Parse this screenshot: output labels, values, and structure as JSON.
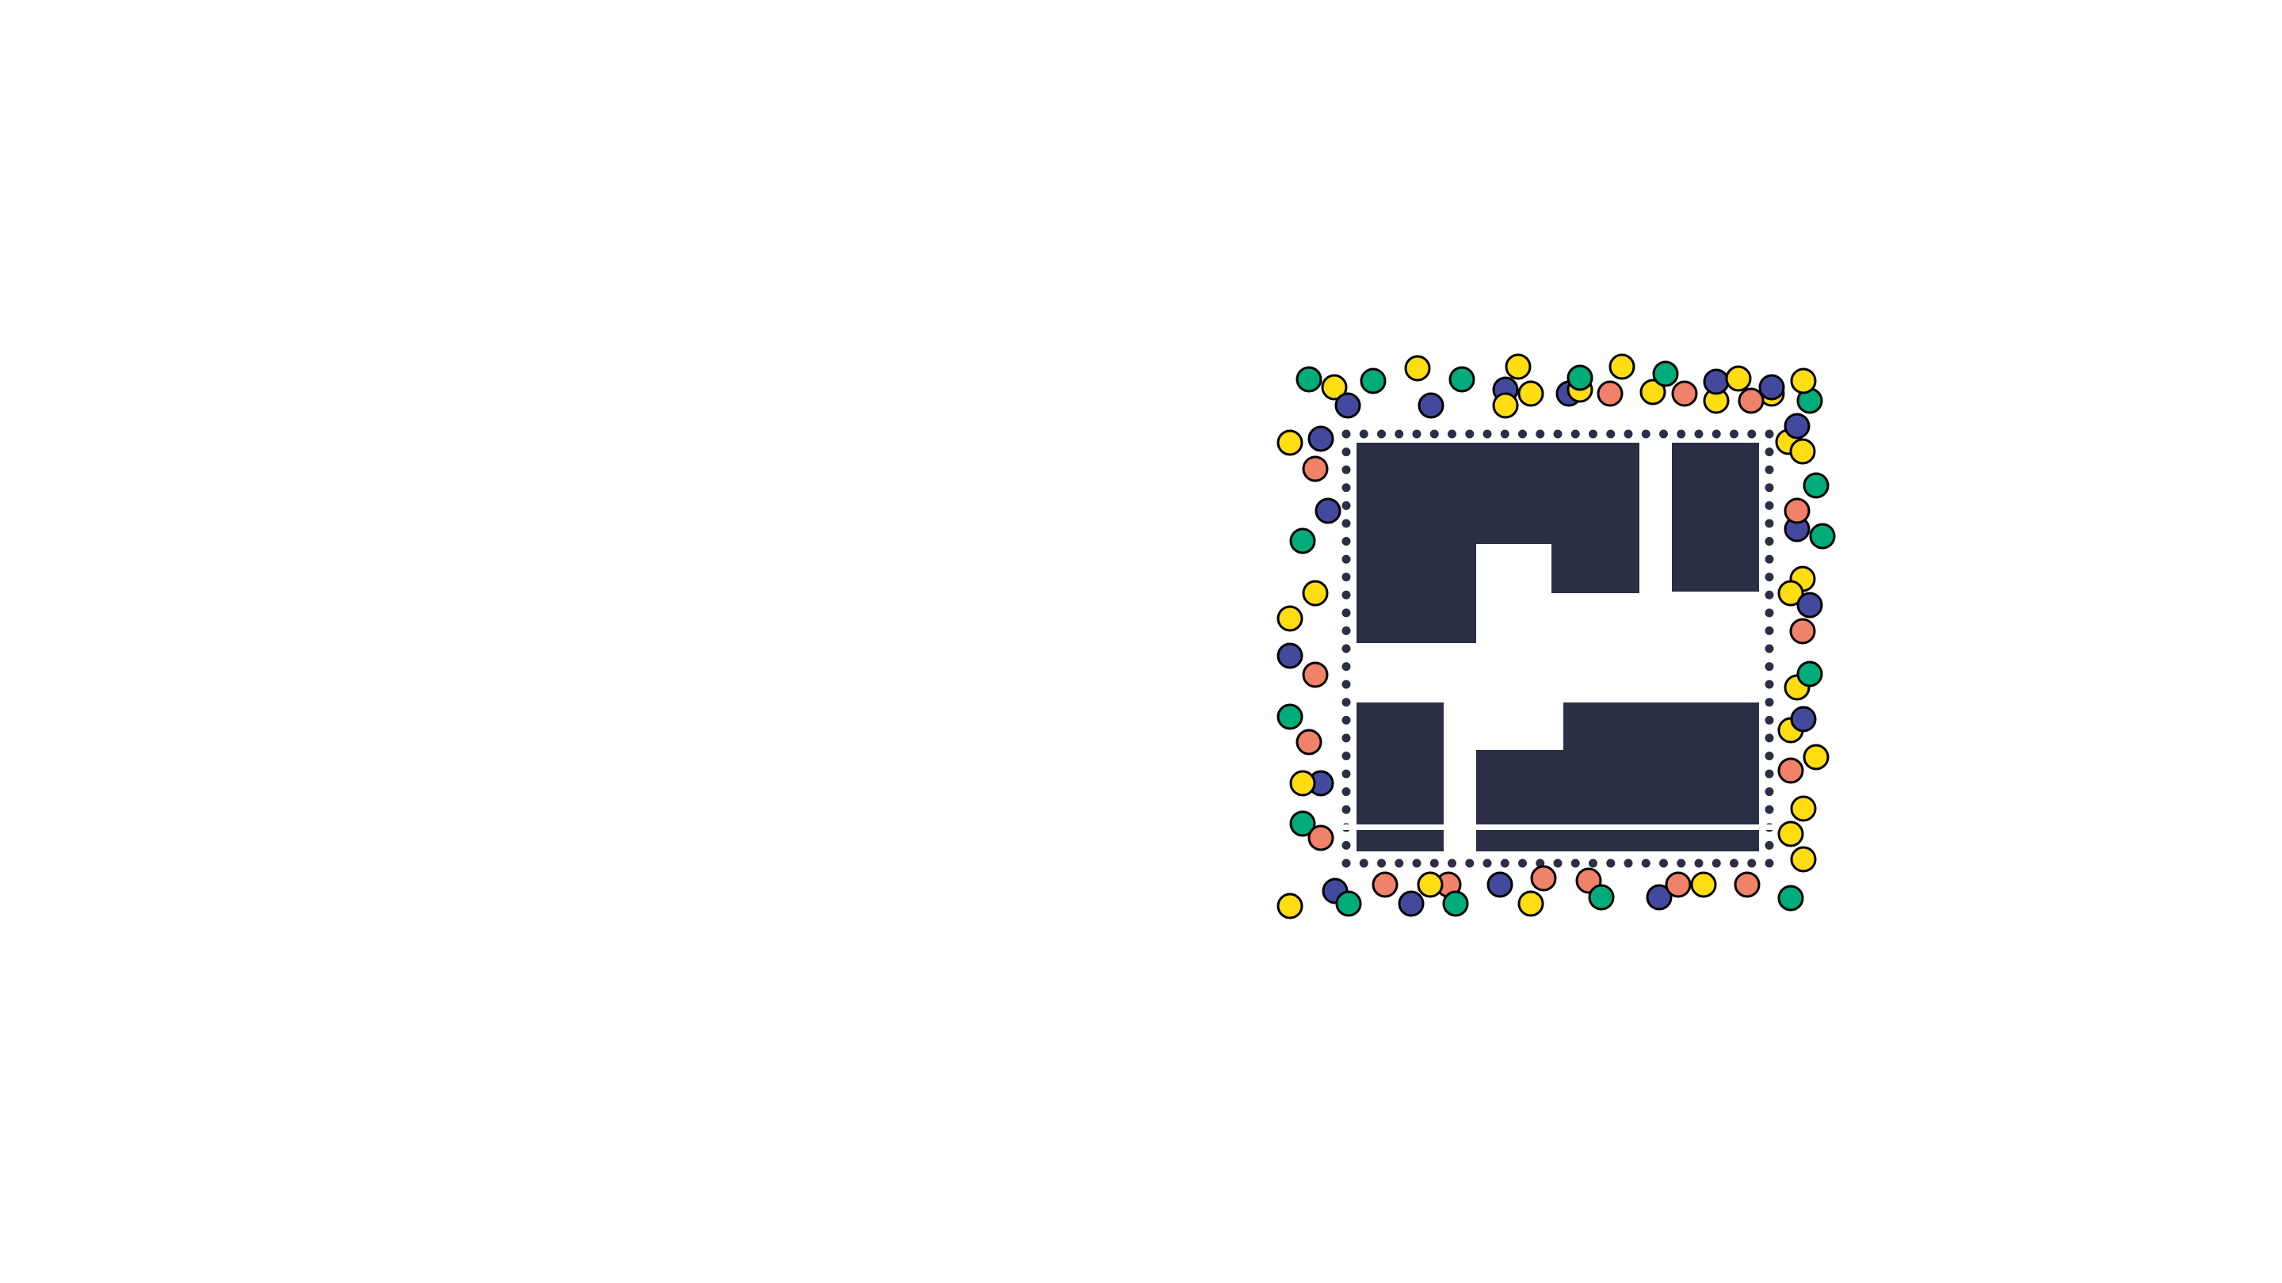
{
  "illustration": {
    "colors": {
      "background": "#ffffff",
      "block": "#2a2f45",
      "border_dots": "#2a2f45",
      "outline": "#000000",
      "dot_green": "#00ac7a",
      "dot_yellow": "#ffdd11",
      "dot_blue": "#434a9e",
      "dot_salmon": "#f0826a"
    }
  }
}
